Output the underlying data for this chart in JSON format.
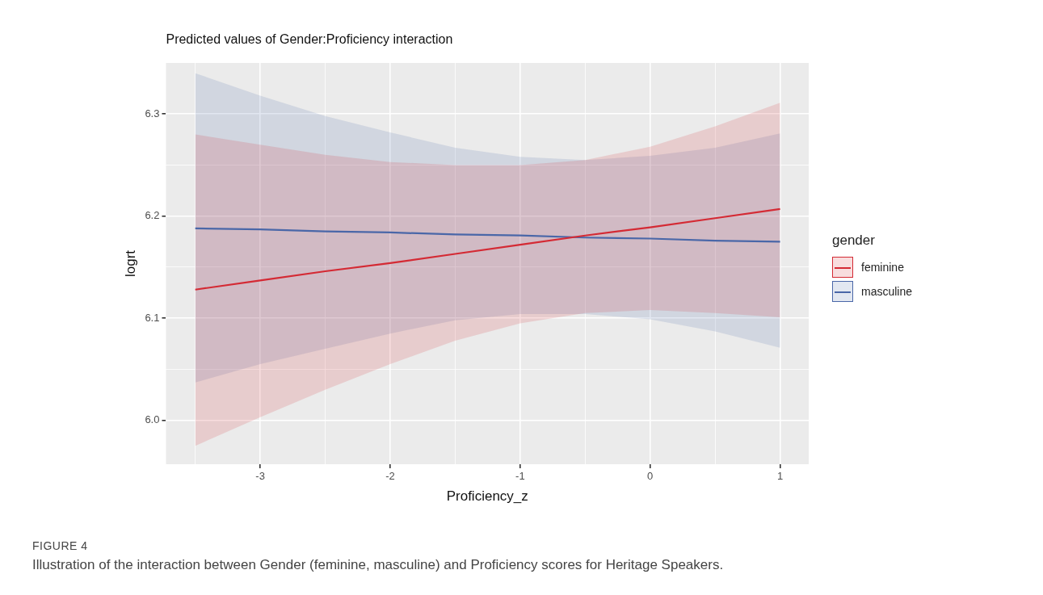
{
  "chart_data": {
    "type": "line",
    "title": "Predicted values of Gender:Proficiency interaction",
    "xlabel": "Proficiency_z",
    "ylabel": "logrt",
    "legend_title": "gender",
    "legend": "right",
    "x": [
      -3.5,
      -3,
      -2.5,
      -2,
      -1.5,
      -1,
      -0.5,
      0,
      0.5,
      1
    ],
    "series": [
      {
        "name": "feminine",
        "color": "#d42a34",
        "values": [
          6.128,
          6.137,
          6.146,
          6.154,
          6.163,
          6.172,
          6.181,
          6.189,
          6.198,
          6.207
        ],
        "lower": [
          5.975,
          6.003,
          6.03,
          6.055,
          6.078,
          6.095,
          6.105,
          6.108,
          6.105,
          6.101
        ],
        "upper": [
          6.28,
          6.27,
          6.26,
          6.253,
          6.25,
          6.25,
          6.255,
          6.268,
          6.288,
          6.311
        ]
      },
      {
        "name": "masculine",
        "color": "#4a67a8",
        "values": [
          6.188,
          6.187,
          6.185,
          6.184,
          6.182,
          6.181,
          6.179,
          6.178,
          6.176,
          6.175
        ],
        "lower": [
          6.037,
          6.055,
          6.07,
          6.085,
          6.098,
          6.104,
          6.104,
          6.099,
          6.087,
          6.071
        ],
        "upper": [
          6.34,
          6.318,
          6.298,
          6.282,
          6.267,
          6.258,
          6.255,
          6.259,
          6.267,
          6.281
        ]
      }
    ],
    "xlim": [
      -3.725,
      1.22
    ],
    "xticks": [
      {
        "value": -3.5,
        "label": null
      },
      -3,
      {
        "value": -2.5,
        "label": null
      },
      -2,
      {
        "value": -1.5,
        "label": null
      },
      -1,
      {
        "value": -0.5,
        "label": null
      },
      0,
      {
        "value": 0.5,
        "label": null
      },
      1
    ],
    "ylim": [
      5.957,
      6.35
    ],
    "yticks": [
      {
        "value": 6.0,
        "label": "6.0"
      },
      {
        "value": 6.05,
        "label": null
      },
      6.1,
      {
        "value": 6.15,
        "label": null
      },
      6.2,
      {
        "value": 6.25,
        "label": null
      },
      6.3
    ],
    "grid": true,
    "marker": "none",
    "line_style": "solid",
    "annotations": [
      "FIGURE 4",
      "Illustration of the interaction between Gender (feminine, masculine) and Proficiency scores for Heritage Speakers."
    ]
  }
}
